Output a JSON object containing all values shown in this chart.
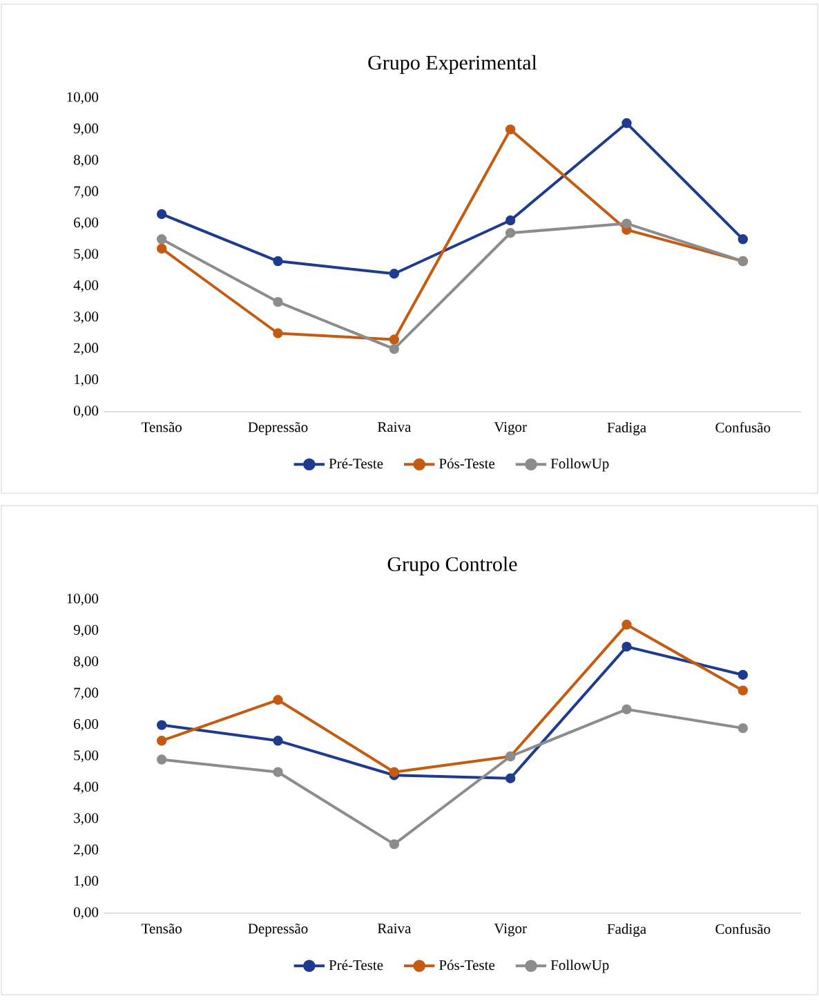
{
  "chart_data": [
    {
      "type": "line",
      "title": "Grupo Experimental",
      "categories": [
        "Tensão",
        "Depressão",
        "Raiva",
        "Vigor",
        "Fadiga",
        "Confusão"
      ],
      "series": [
        {
          "name": "Pré-Teste",
          "color": "#1f3b8f",
          "values": [
            6.3,
            4.8,
            4.4,
            6.1,
            9.2,
            5.5
          ]
        },
        {
          "name": "Pós-Teste",
          "color": "#c55a11",
          "values": [
            5.2,
            2.5,
            2.3,
            9.0,
            5.8,
            4.8
          ]
        },
        {
          "name": "FollowUp",
          "color": "#8c8c8c",
          "values": [
            5.5,
            3.5,
            2.0,
            5.7,
            6.0,
            4.8
          ]
        }
      ],
      "ylim": [
        0,
        10
      ],
      "yticks": [
        {
          "value": 0,
          "label": "0,00"
        },
        {
          "value": 1,
          "label": "1,00"
        },
        {
          "value": 2,
          "label": "2,00"
        },
        {
          "value": 3,
          "label": "3,00"
        },
        {
          "value": 4,
          "label": "4,00"
        },
        {
          "value": 5,
          "label": "5,00"
        },
        {
          "value": 6,
          "label": "6,00"
        },
        {
          "value": 7,
          "label": "7,00"
        },
        {
          "value": 8,
          "label": "8,00"
        },
        {
          "value": 9,
          "label": "9,00"
        },
        {
          "value": 10,
          "label": "10,00"
        }
      ],
      "grid": false,
      "legend": "bottom",
      "marker": "circle",
      "line_style": "solid"
    },
    {
      "type": "line",
      "title": "Grupo Controle",
      "categories": [
        "Tensão",
        "Depressão",
        "Raiva",
        "Vigor",
        "Fadiga",
        "Confusão"
      ],
      "series": [
        {
          "name": "Pré-Teste",
          "color": "#1f3b8f",
          "values": [
            6.0,
            5.5,
            4.4,
            4.3,
            8.5,
            7.6
          ]
        },
        {
          "name": "Pós-Teste",
          "color": "#c55a11",
          "values": [
            5.5,
            6.8,
            4.5,
            5.0,
            9.2,
            7.1
          ]
        },
        {
          "name": "FollowUp",
          "color": "#8c8c8c",
          "values": [
            4.9,
            4.5,
            2.2,
            5.0,
            6.5,
            5.9
          ]
        }
      ],
      "ylim": [
        0,
        10
      ],
      "yticks": [
        {
          "value": 0,
          "label": "0,00"
        },
        {
          "value": 1,
          "label": "1,00"
        },
        {
          "value": 2,
          "label": "2,00"
        },
        {
          "value": 3,
          "label": "3,00"
        },
        {
          "value": 4,
          "label": "4,00"
        },
        {
          "value": 5,
          "label": "5,00"
        },
        {
          "value": 6,
          "label": "6,00"
        },
        {
          "value": 7,
          "label": "7,00"
        },
        {
          "value": 8,
          "label": "8,00"
        },
        {
          "value": 9,
          "label": "9,00"
        },
        {
          "value": 10,
          "label": "10,00"
        }
      ],
      "grid": false,
      "legend": "bottom",
      "marker": "circle",
      "line_style": "solid"
    }
  ]
}
